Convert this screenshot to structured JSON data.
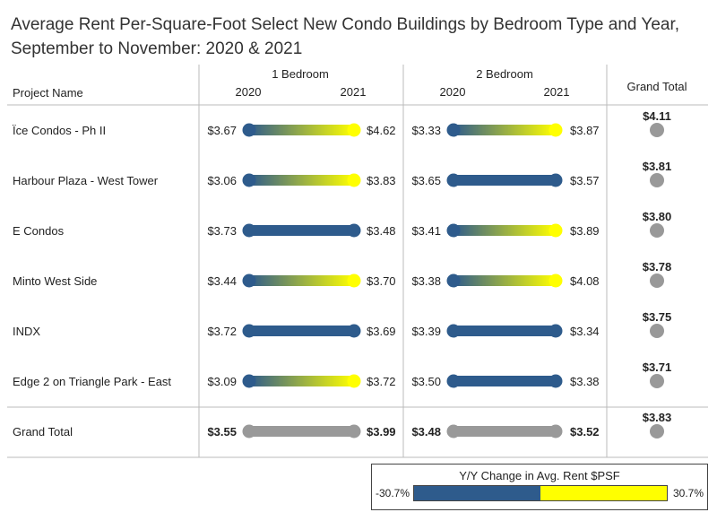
{
  "title": "Average Rent Per-Square-Foot Select New Condo Buildings by Bedroom Type and Year, September to November: 2020 & 2021",
  "colors": {
    "negative": "#2e5b8c",
    "positive": "#ffff00",
    "total_bar": "#999999",
    "total_dot": "#999999",
    "grid": "#cccccc",
    "divider": "#bbbbbb"
  },
  "chart_data": {
    "type": "dumbbell",
    "row_header": "Project Name",
    "column_groups": [
      {
        "name": "1 Bedroom",
        "years": [
          "2020",
          "2021"
        ]
      },
      {
        "name": "2 Bedroom",
        "years": [
          "2020",
          "2021"
        ]
      }
    ],
    "grand_total_header": "Grand Total",
    "rows": [
      {
        "project": "Ïce Condos - Ph II",
        "br1_2020": "$3.67",
        "br1_2021": "$4.62",
        "br2_2020": "$3.33",
        "br2_2021": "$3.87",
        "grand_total": "$4.11",
        "br1_change": "up",
        "br2_change": "up"
      },
      {
        "project": "Harbour Plaza - West Tower",
        "br1_2020": "$3.06",
        "br1_2021": "$3.83",
        "br2_2020": "$3.65",
        "br2_2021": "$3.57",
        "grand_total": "$3.81",
        "br1_change": "up",
        "br2_change": "down"
      },
      {
        "project": "E Condos",
        "br1_2020": "$3.73",
        "br1_2021": "$3.48",
        "br2_2020": "$3.41",
        "br2_2021": "$3.89",
        "grand_total": "$3.80",
        "br1_change": "down",
        "br2_change": "up"
      },
      {
        "project": "Minto West Side",
        "br1_2020": "$3.44",
        "br1_2021": "$3.70",
        "br2_2020": "$3.38",
        "br2_2021": "$4.08",
        "grand_total": "$3.78",
        "br1_change": "up",
        "br2_change": "up"
      },
      {
        "project": "INDX",
        "br1_2020": "$3.72",
        "br1_2021": "$3.69",
        "br2_2020": "$3.39",
        "br2_2021": "$3.34",
        "grand_total": "$3.75",
        "br1_change": "down",
        "br2_change": "down"
      },
      {
        "project": "Edge 2 on Triangle Park - East",
        "br1_2020": "$3.09",
        "br1_2021": "$3.72",
        "br2_2020": "$3.50",
        "br2_2021": "$3.38",
        "grand_total": "$3.71",
        "br1_change": "up",
        "br2_change": "down"
      },
      {
        "project": "Grand Total",
        "br1_2020": "$3.55",
        "br1_2021": "$3.99",
        "br2_2020": "$3.48",
        "br2_2021": "$3.52",
        "grand_total": "$3.83",
        "br1_change": "total",
        "br2_change": "total"
      }
    ]
  },
  "legend": {
    "title": "Y/Y Change in Avg. Rent $PSF",
    "min": "-30.7%",
    "max": "30.7%"
  }
}
